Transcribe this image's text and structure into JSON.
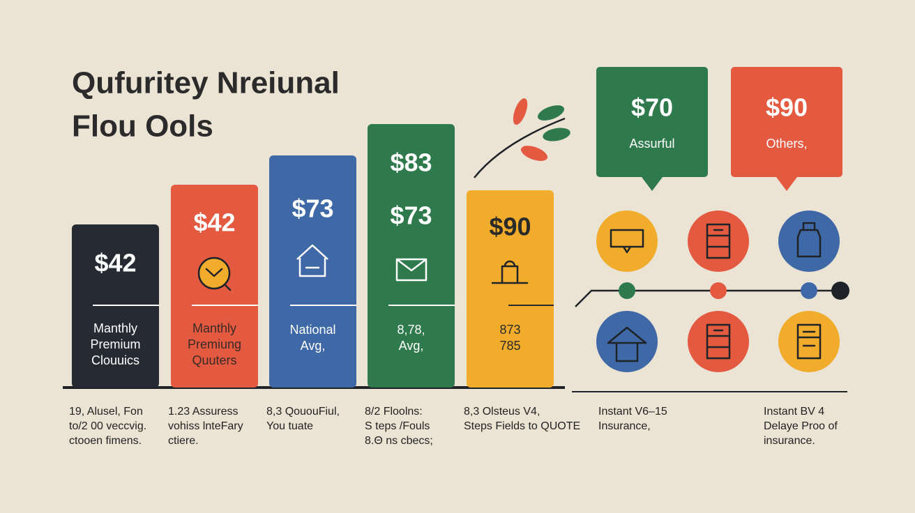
{
  "title": [
    "Qufuritey Nreiunal",
    "Flou Ools"
  ],
  "columns": [
    {
      "prices": [
        "$42"
      ],
      "label": [
        "Manthly",
        "Premium",
        "Clouuics"
      ],
      "caption": [
        "19, Alusel, Fon",
        "to/2 00 veccvig.",
        "ctooen fimens."
      ]
    },
    {
      "prices": [
        "$42"
      ],
      "label": [
        "Manthly",
        "Premiung",
        "Quuters"
      ],
      "caption": [
        "1.23 Assuress",
        "vohiss lnteFary",
        "ctiere."
      ]
    },
    {
      "prices": [
        "$73"
      ],
      "label": [
        "National",
        "Avg,"
      ],
      "caption": [
        "8,3 QououFiul,",
        "You tuate"
      ]
    },
    {
      "prices": [
        "$83",
        "$73"
      ],
      "label": [
        "8,78,",
        "Avg,"
      ],
      "caption": [
        "8/2 Floolns:",
        "S teps /Fouls",
        "8.Θ ns cbecs;"
      ]
    },
    {
      "prices": [
        "$90"
      ],
      "label": [
        "873",
        "785"
      ],
      "caption": [
        "8,3 Olsteus V4,",
        "Steps Fields to QUOTE"
      ]
    }
  ],
  "callouts": [
    {
      "price": "$70",
      "label": "Assurful"
    },
    {
      "price": "$90",
      "label": "Others,"
    }
  ],
  "notes": [
    {
      "caption": [
        "Instant V6–15",
        "Insurance,"
      ]
    },
    {
      "caption": [
        "Instant BV 4",
        "Delaye Proo of",
        "insurance."
      ]
    }
  ]
}
